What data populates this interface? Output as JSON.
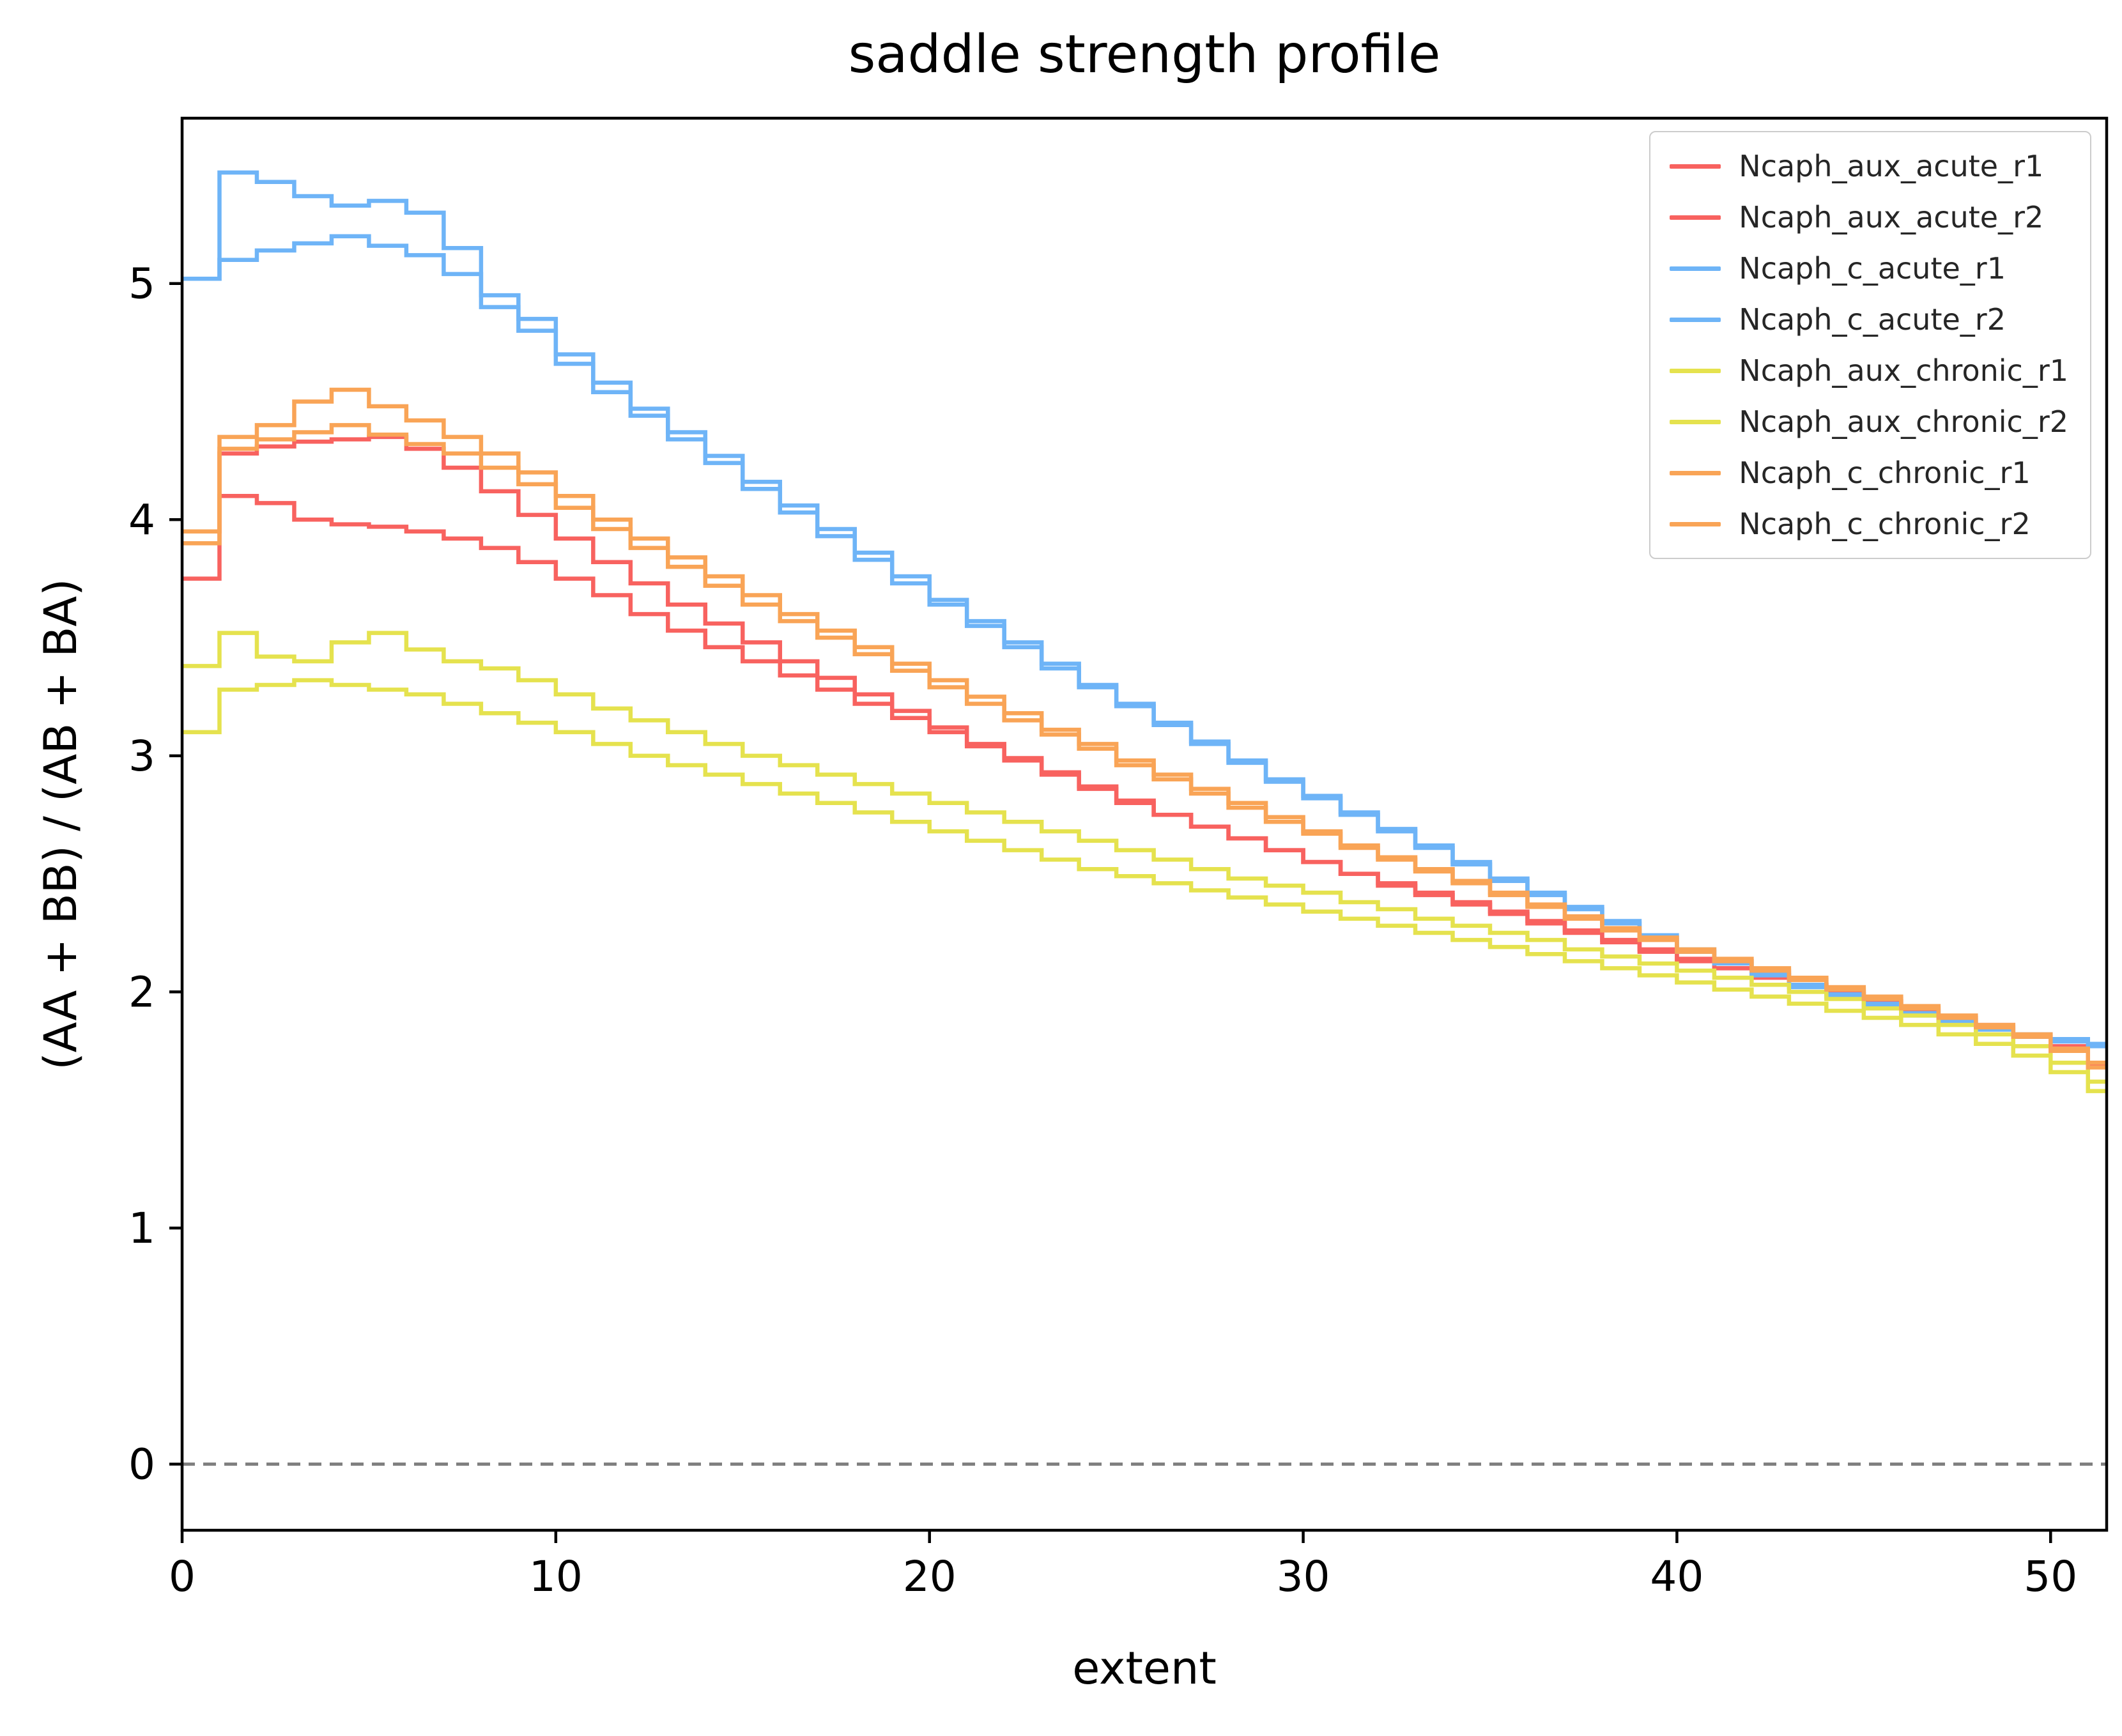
{
  "title": "saddle strength profile",
  "xlabel": "extent",
  "ylabel": "(AA + BB) / (AB + BA)",
  "colors": {
    "aux_acute": "#f8625f",
    "c_acute": "#6eb4f7",
    "aux_chronic": "#e5e24e",
    "c_chronic": "#f9a456",
    "zero_line": "#808080",
    "spine": "#000000",
    "legend_border": "#cccccc"
  },
  "chart_data": {
    "type": "line",
    "style": "step",
    "title": "saddle strength profile",
    "xlabel": "extent",
    "ylabel": "(AA + BB) / (AB + BA)",
    "xlim": [
      0,
      51.5
    ],
    "ylim": [
      -0.28,
      5.7
    ],
    "x_ticks": [
      0,
      10,
      20,
      30,
      40,
      50
    ],
    "y_ticks": [
      0,
      1,
      2,
      3,
      4,
      5
    ],
    "grid": false,
    "legend_position": "upper right",
    "zero_line": {
      "y": 0,
      "style": "dashed",
      "color": "#808080"
    },
    "x_start": 0,
    "x_step": 1,
    "series": [
      {
        "name": "Ncaph_aux_acute_r1",
        "color": "#f8625f",
        "values": [
          3.75,
          4.28,
          4.31,
          4.33,
          4.34,
          4.35,
          4.3,
          4.22,
          4.12,
          4.02,
          3.92,
          3.82,
          3.73,
          3.64,
          3.56,
          3.48,
          3.4,
          3.33,
          3.26,
          3.19,
          3.12,
          3.05,
          2.99,
          2.93,
          2.87,
          2.81,
          2.75,
          2.7,
          2.65,
          2.6,
          2.55,
          2.5,
          2.45,
          2.41,
          2.37,
          2.33,
          2.29,
          2.25,
          2.21,
          2.17,
          2.13,
          2.1,
          2.06,
          2.03,
          1.99,
          1.96,
          1.92,
          1.89,
          1.85,
          1.81,
          1.76,
          1.7
        ]
      },
      {
        "name": "Ncaph_aux_acute_r2",
        "color": "#f8625f",
        "values": [
          3.95,
          4.1,
          4.07,
          4.0,
          3.98,
          3.97,
          3.95,
          3.92,
          3.88,
          3.82,
          3.75,
          3.68,
          3.6,
          3.53,
          3.46,
          3.4,
          3.34,
          3.28,
          3.22,
          3.16,
          3.1,
          3.04,
          2.98,
          2.92,
          2.86,
          2.8,
          2.75,
          2.7,
          2.65,
          2.6,
          2.55,
          2.5,
          2.46,
          2.42,
          2.38,
          2.34,
          2.3,
          2.26,
          2.22,
          2.18,
          2.14,
          2.1,
          2.07,
          2.03,
          2.0,
          1.96,
          1.93,
          1.89,
          1.86,
          1.82,
          1.77,
          1.69
        ]
      },
      {
        "name": "Ncaph_c_acute_r1",
        "color": "#6eb4f7",
        "values": [
          5.02,
          5.47,
          5.43,
          5.37,
          5.33,
          5.35,
          5.3,
          5.15,
          4.95,
          4.85,
          4.7,
          4.58,
          4.47,
          4.37,
          4.27,
          4.16,
          4.06,
          3.96,
          3.86,
          3.76,
          3.66,
          3.57,
          3.48,
          3.39,
          3.3,
          3.22,
          3.14,
          3.06,
          2.98,
          2.9,
          2.83,
          2.76,
          2.69,
          2.62,
          2.55,
          2.48,
          2.42,
          2.36,
          2.3,
          2.24,
          2.18,
          2.13,
          2.08,
          2.03,
          1.99,
          1.95,
          1.91,
          1.88,
          1.85,
          1.82,
          1.8,
          1.78
        ]
      },
      {
        "name": "Ncaph_c_acute_r2",
        "color": "#6eb4f7",
        "values": [
          5.02,
          5.1,
          5.14,
          5.17,
          5.2,
          5.16,
          5.12,
          5.04,
          4.9,
          4.8,
          4.66,
          4.54,
          4.44,
          4.34,
          4.24,
          4.13,
          4.03,
          3.93,
          3.83,
          3.73,
          3.64,
          3.55,
          3.46,
          3.37,
          3.29,
          3.21,
          3.13,
          3.05,
          2.97,
          2.89,
          2.82,
          2.75,
          2.68,
          2.61,
          2.54,
          2.47,
          2.41,
          2.35,
          2.29,
          2.23,
          2.17,
          2.12,
          2.07,
          2.02,
          1.98,
          1.94,
          1.9,
          1.87,
          1.84,
          1.81,
          1.79,
          1.77
        ]
      },
      {
        "name": "Ncaph_aux_chronic_r1",
        "color": "#e5e24e",
        "values": [
          3.38,
          3.52,
          3.42,
          3.4,
          3.48,
          3.52,
          3.45,
          3.4,
          3.37,
          3.32,
          3.26,
          3.2,
          3.15,
          3.1,
          3.05,
          3.0,
          2.96,
          2.92,
          2.88,
          2.84,
          2.8,
          2.76,
          2.72,
          2.68,
          2.64,
          2.6,
          2.56,
          2.52,
          2.48,
          2.45,
          2.42,
          2.38,
          2.35,
          2.31,
          2.28,
          2.25,
          2.22,
          2.18,
          2.15,
          2.12,
          2.09,
          2.06,
          2.03,
          2.0,
          1.97,
          1.93,
          1.9,
          1.86,
          1.82,
          1.77,
          1.7,
          1.62
        ]
      },
      {
        "name": "Ncaph_aux_chronic_r2",
        "color": "#e5e24e",
        "values": [
          3.1,
          3.28,
          3.3,
          3.32,
          3.3,
          3.28,
          3.26,
          3.22,
          3.18,
          3.14,
          3.1,
          3.05,
          3.0,
          2.96,
          2.92,
          2.88,
          2.84,
          2.8,
          2.76,
          2.72,
          2.68,
          2.64,
          2.6,
          2.56,
          2.52,
          2.49,
          2.46,
          2.43,
          2.4,
          2.37,
          2.34,
          2.31,
          2.28,
          2.25,
          2.22,
          2.19,
          2.16,
          2.13,
          2.1,
          2.07,
          2.04,
          2.01,
          1.98,
          1.95,
          1.92,
          1.89,
          1.86,
          1.82,
          1.78,
          1.73,
          1.66,
          1.58
        ]
      },
      {
        "name": "Ncaph_c_chronic_r1",
        "color": "#f9a456",
        "values": [
          3.95,
          4.35,
          4.4,
          4.5,
          4.55,
          4.48,
          4.42,
          4.35,
          4.28,
          4.2,
          4.1,
          4.0,
          3.92,
          3.84,
          3.76,
          3.68,
          3.6,
          3.53,
          3.46,
          3.39,
          3.32,
          3.25,
          3.18,
          3.11,
          3.05,
          2.98,
          2.92,
          2.86,
          2.8,
          2.74,
          2.68,
          2.62,
          2.57,
          2.52,
          2.47,
          2.42,
          2.37,
          2.32,
          2.27,
          2.23,
          2.18,
          2.14,
          2.1,
          2.06,
          2.02,
          1.98,
          1.94,
          1.9,
          1.86,
          1.82,
          1.76,
          1.7
        ]
      },
      {
        "name": "Ncaph_c_chronic_r2",
        "color": "#f9a456",
        "values": [
          3.9,
          4.3,
          4.34,
          4.37,
          4.4,
          4.36,
          4.32,
          4.28,
          4.22,
          4.15,
          4.05,
          3.96,
          3.88,
          3.8,
          3.72,
          3.64,
          3.57,
          3.5,
          3.43,
          3.36,
          3.29,
          3.22,
          3.15,
          3.09,
          3.03,
          2.96,
          2.9,
          2.84,
          2.78,
          2.72,
          2.67,
          2.61,
          2.56,
          2.51,
          2.46,
          2.41,
          2.36,
          2.31,
          2.26,
          2.22,
          2.17,
          2.13,
          2.09,
          2.05,
          2.01,
          1.97,
          1.93,
          1.89,
          1.85,
          1.81,
          1.75,
          1.68
        ]
      }
    ]
  }
}
